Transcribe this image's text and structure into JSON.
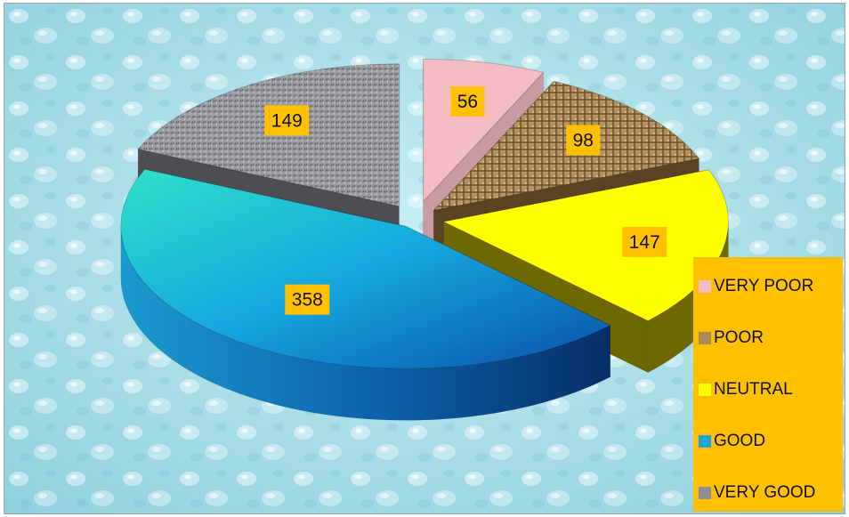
{
  "chart_data": {
    "type": "pie",
    "variant": "3d-exploded",
    "categories": [
      "VERY POOR",
      "POOR",
      "NEUTRAL",
      "GOOD",
      "VERY GOOD"
    ],
    "values": [
      56,
      98,
      147,
      358,
      149
    ],
    "data_labels": [
      "56",
      "98",
      "147",
      "358",
      "149"
    ],
    "title": "",
    "legend_position": "right",
    "colors": {
      "VERY POOR": "#f2bcc2",
      "POOR": "#a88a5a",
      "NEUTRAL": "#ffff00",
      "GOOD": "#1fa5dc",
      "VERY GOOD": "#8e8e94"
    },
    "label_background": "#ffc000",
    "legend_background": "#ffc000"
  }
}
